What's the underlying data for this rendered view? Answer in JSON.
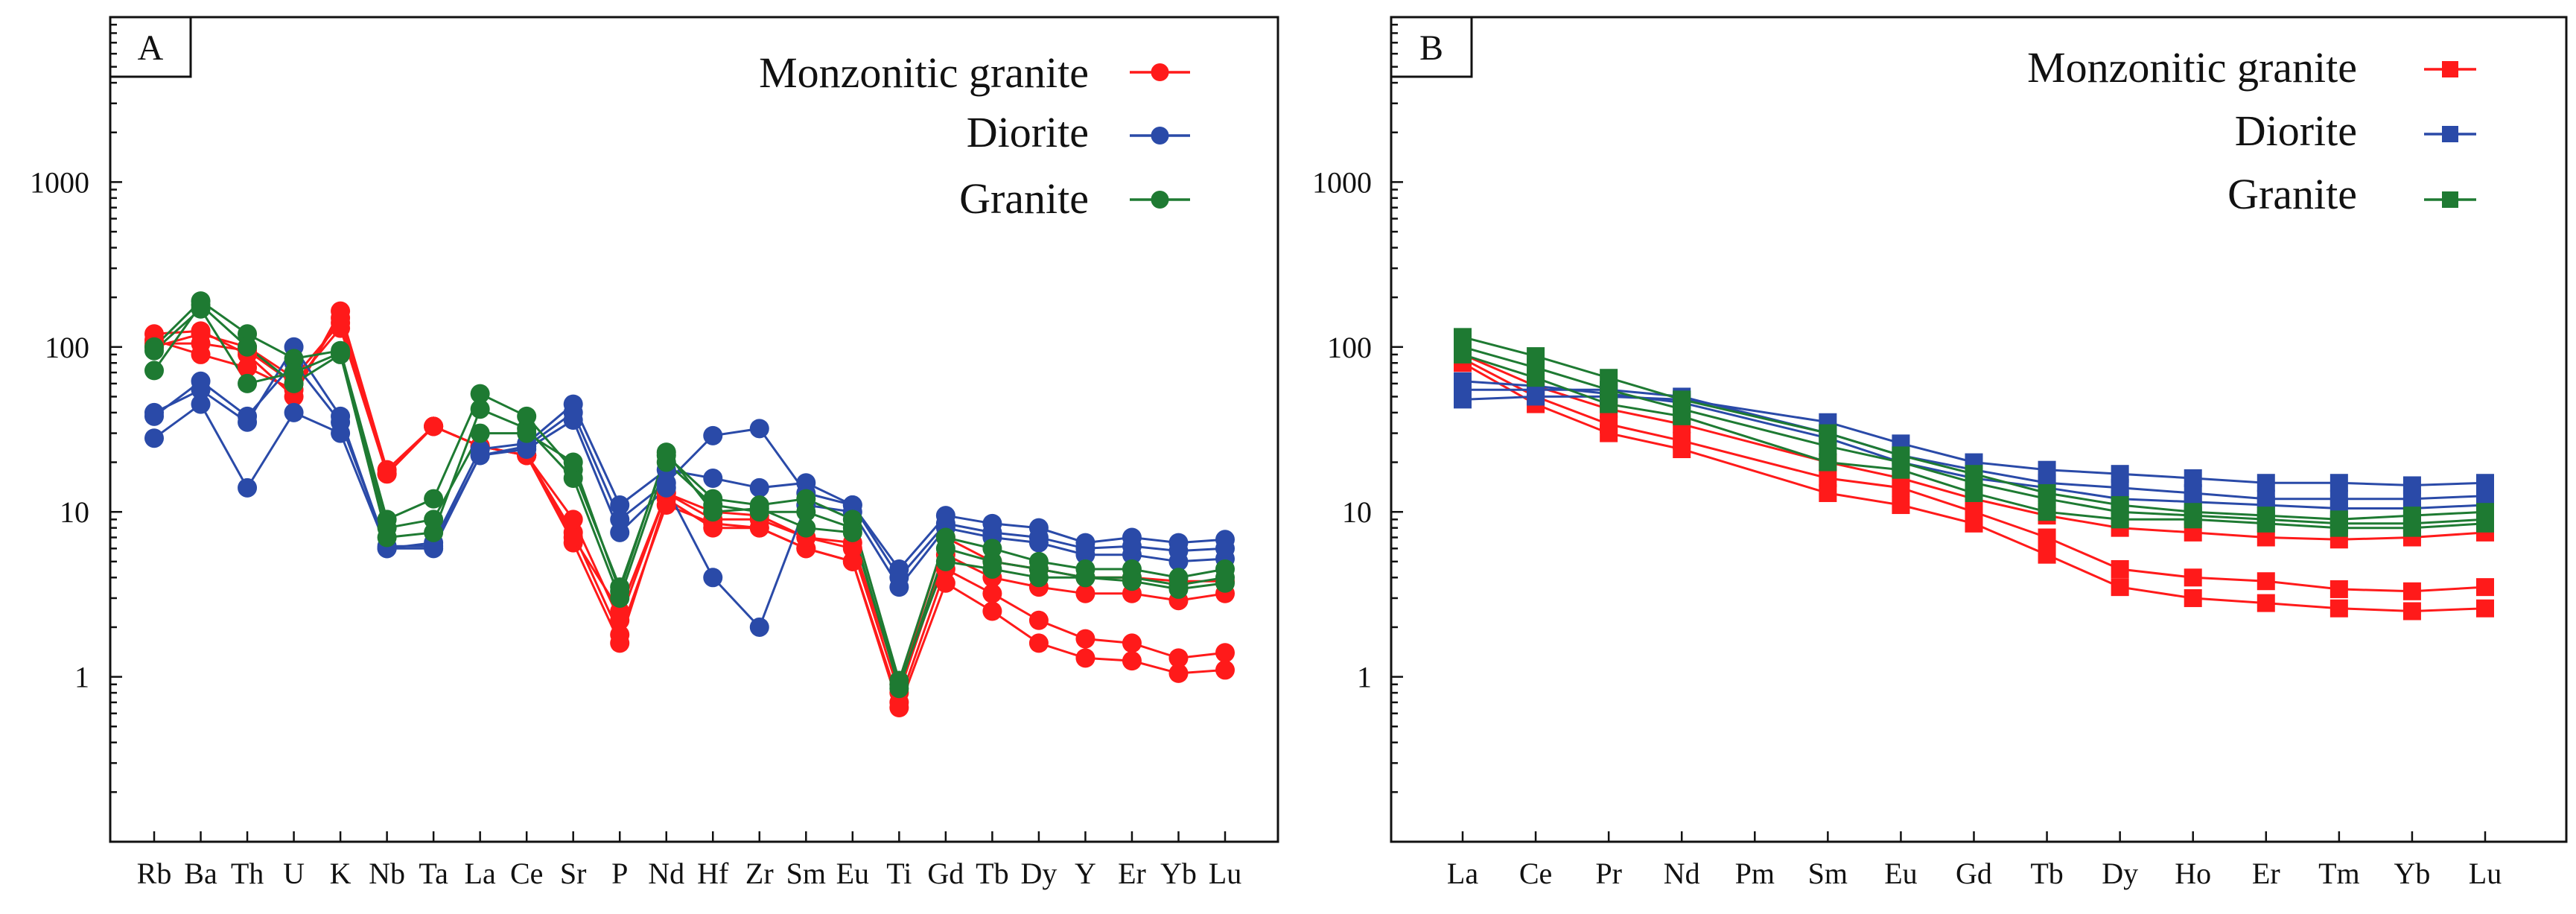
{
  "chart_data": [
    {
      "type": "line",
      "panel_label": "A",
      "yscale": "log",
      "ylim": [
        0.1,
        10000
      ],
      "ytick_labels": [
        "1",
        "10",
        "100",
        "1000"
      ],
      "ytick_values": [
        1,
        10,
        100,
        1000
      ],
      "categories": [
        "Rb",
        "Ba",
        "Th",
        "U",
        "K",
        "Nb",
        "Ta",
        "La",
        "Ce",
        "Sr",
        "P",
        "Nd",
        "Hf",
        "Zr",
        "Sm",
        "Eu",
        "Ti",
        "Gd",
        "Tb",
        "Dy",
        "Y",
        "Er",
        "Yb",
        "Lu"
      ],
      "legend": [
        {
          "label": "Monzonitic granite",
          "color": "#ff1a1a",
          "marker": "circle"
        },
        {
          "label": "Diorite",
          "color": "#2a4aa8",
          "marker": "circle"
        },
        {
          "label": "Granite",
          "color": "#1e7a32",
          "marker": "circle"
        }
      ],
      "series": [
        {
          "group": "Monzonitic granite",
          "color": "#ff1a1a",
          "values": [
            120,
            125,
            90,
            50,
            165,
            18,
            33,
            25,
            22,
            9,
            2.2,
            13,
            10,
            9.5,
            7,
            6.5,
            0.9,
            7,
            5,
            4.5,
            4,
            4,
            3.8,
            3.8
          ]
        },
        {
          "group": "Monzonitic granite",
          "color": "#ff1a1a",
          "values": [
            110,
            90,
            75,
            55,
            150,
            17,
            33,
            25,
            22,
            7.5,
            1.8,
            11,
            8.5,
            8,
            6,
            5,
            0.65,
            3.7,
            2.5,
            1.6,
            1.3,
            1.25,
            1.05,
            1.1
          ]
        },
        {
          "group": "Monzonitic granite",
          "color": "#ff1a1a",
          "values": [
            105,
            105,
            95,
            60,
            130,
            17,
            33,
            25,
            22,
            6.5,
            1.6,
            12,
            8,
            8,
            6,
            5,
            0.7,
            4.5,
            3.2,
            2.2,
            1.7,
            1.6,
            1.3,
            1.4
          ]
        },
        {
          "group": "Monzonitic granite",
          "color": "#ff1a1a",
          "values": [
            100,
            120,
            100,
            65,
            140,
            17,
            33,
            25,
            22,
            7,
            2.5,
            13,
            9,
            9,
            7,
            6,
            0.8,
            5.5,
            4,
            3.5,
            3.2,
            3.2,
            2.9,
            3.2
          ]
        },
        {
          "group": "Diorite",
          "color": "#2a4aa8",
          "values": [
            28,
            45,
            14,
            40,
            30,
            6,
            6,
            22,
            24,
            36,
            7.5,
            14,
            4,
            2,
            11,
            10,
            3.5,
            8,
            7,
            6.5,
            5.5,
            5.5,
            5,
            5.2
          ]
        },
        {
          "group": "Diorite",
          "color": "#2a4aa8",
          "values": [
            40,
            55,
            35,
            100,
            38,
            6,
            6.5,
            24,
            26,
            45,
            11,
            18,
            16,
            14,
            15,
            11,
            4.5,
            9.5,
            8.5,
            8,
            6.5,
            7,
            6.5,
            6.8
          ]
        },
        {
          "group": "Diorite",
          "color": "#2a4aa8",
          "values": [
            38,
            62,
            38,
            80,
            35,
            6.2,
            6.2,
            22,
            25,
            40,
            9,
            15,
            29,
            32,
            13,
            11,
            4,
            8.5,
            7.5,
            7,
            6,
            6.2,
            5.8,
            6
          ]
        },
        {
          "group": "Granite",
          "color": "#1e7a32",
          "values": [
            100,
            190,
            120,
            85,
            95,
            9,
            12,
            52,
            38,
            18,
            3.5,
            22,
            12,
            11,
            12,
            9,
            0.95,
            7,
            6,
            5,
            4.5,
            4.5,
            4,
            4.5
          ]
        },
        {
          "group": "Granite",
          "color": "#1e7a32",
          "values": [
            72,
            180,
            100,
            60,
            90,
            7,
            7.5,
            42,
            32,
            16,
            3,
            20,
            11,
            10,
            10,
            8,
            0.85,
            6,
            5,
            4.5,
            4,
            4,
            3.6,
            4
          ]
        },
        {
          "group": "Granite",
          "color": "#1e7a32",
          "values": [
            95,
            170,
            60,
            70,
            92,
            8,
            9,
            30,
            30,
            20,
            3.3,
            23,
            10,
            10.5,
            8,
            7.5,
            0.9,
            5,
            4.5,
            4,
            4,
            3.8,
            3.4,
            3.7
          ]
        }
      ]
    },
    {
      "type": "line",
      "panel_label": "B",
      "yscale": "log",
      "ylim": [
        0.1,
        10000
      ],
      "ytick_labels": [
        "1",
        "10",
        "100",
        "1000"
      ],
      "ytick_values": [
        1,
        10,
        100,
        1000
      ],
      "categories": [
        "La",
        "Ce",
        "Pr",
        "Nd",
        "Pm",
        "Sm",
        "Eu",
        "Gd",
        "Tb",
        "Dy",
        "Ho",
        "Er",
        "Tm",
        "Yb",
        "Lu"
      ],
      "legend": [
        {
          "label": "Monzonitic granite",
          "color": "#ff1a1a",
          "marker": "square"
        },
        {
          "label": "Diorite",
          "color": "#2a4aa8",
          "marker": "square"
        },
        {
          "label": "Granite",
          "color": "#1e7a32",
          "marker": "square"
        }
      ],
      "series": [
        {
          "group": "Monzonitic granite",
          "color": "#ff1a1a",
          "values": [
            80,
            45,
            30,
            24,
            null,
            13,
            11,
            8.5,
            5.5,
            3.5,
            3,
            2.8,
            2.6,
            2.5,
            2.6
          ]
        },
        {
          "group": "Monzonitic granite",
          "color": "#ff1a1a",
          "values": [
            85,
            50,
            34,
            27,
            null,
            16,
            14,
            10,
            7,
            4.5,
            4,
            3.8,
            3.4,
            3.3,
            3.5
          ]
        },
        {
          "group": "Monzonitic granite",
          "color": "#ff1a1a",
          "values": [
            90,
            58,
            42,
            34,
            null,
            20,
            16,
            12,
            9.5,
            8,
            7.5,
            7,
            6.8,
            7,
            7.5
          ]
        },
        {
          "group": "Diorite",
          "color": "#2a4aa8",
          "values": [
            48,
            50,
            50,
            48,
            null,
            35,
            26,
            20,
            18,
            17,
            16,
            15,
            15,
            14.5,
            15
          ]
        },
        {
          "group": "Diorite",
          "color": "#2a4aa8",
          "values": [
            55,
            55,
            55,
            50,
            null,
            30,
            22,
            18,
            15,
            14,
            13,
            12,
            12,
            12,
            12.5
          ]
        },
        {
          "group": "Diorite",
          "color": "#2a4aa8",
          "values": [
            62,
            58,
            52,
            46,
            null,
            28,
            20,
            16,
            14,
            12,
            11.5,
            11,
            10.5,
            10.5,
            11
          ]
        },
        {
          "group": "Granite",
          "color": "#1e7a32",
          "values": [
            115,
            88,
            65,
            48,
            null,
            30,
            22,
            17,
            13,
            11,
            10,
            9.5,
            9,
            9.5,
            10
          ]
        },
        {
          "group": "Granite",
          "color": "#1e7a32",
          "values": [
            100,
            75,
            55,
            42,
            null,
            25,
            20,
            15,
            12,
            10,
            9.5,
            9,
            8.5,
            8.5,
            9
          ]
        },
        {
          "group": "Granite",
          "color": "#1e7a32",
          "values": [
            90,
            65,
            45,
            38,
            null,
            20,
            18,
            13,
            10,
            9,
            9,
            8.5,
            8,
            8,
            8.5
          ]
        }
      ]
    }
  ]
}
